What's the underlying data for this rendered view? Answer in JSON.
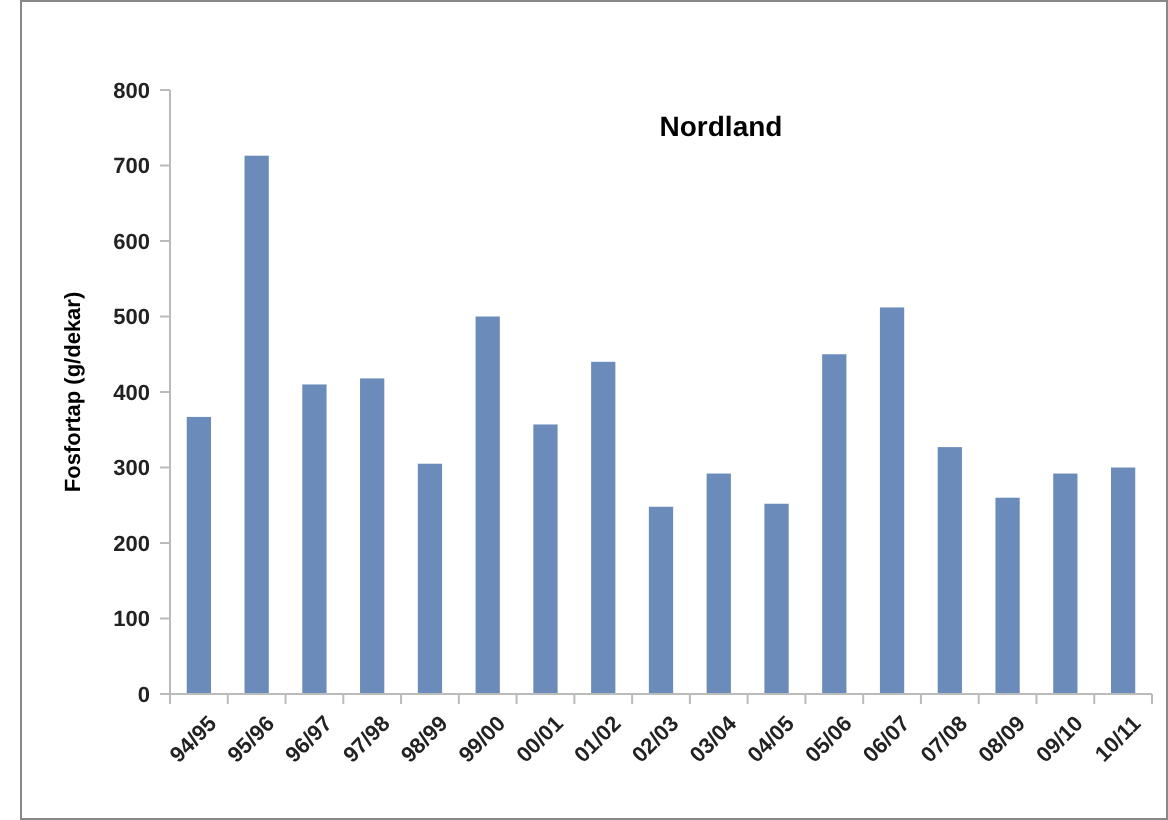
{
  "chart_data": {
    "type": "bar",
    "title": "Nordland",
    "ylabel": "Fosfortap (g/dekar)",
    "categories": [
      "94/95",
      "95/96",
      "96/97",
      "97/98",
      "98/99",
      "99/00",
      "00/01",
      "01/02",
      "02/03",
      "03/04",
      "04/05",
      "05/06",
      "06/07",
      "07/08",
      "08/09",
      "09/10",
      "10/11"
    ],
    "values": [
      367,
      713,
      410,
      418,
      305,
      500,
      357,
      440,
      248,
      292,
      252,
      450,
      512,
      327,
      260,
      292,
      300
    ],
    "color": "#6b8cba",
    "ylim": [
      0,
      800
    ],
    "yticks": [
      0,
      100,
      200,
      300,
      400,
      500,
      600,
      700,
      800
    ],
    "grid": false
  }
}
